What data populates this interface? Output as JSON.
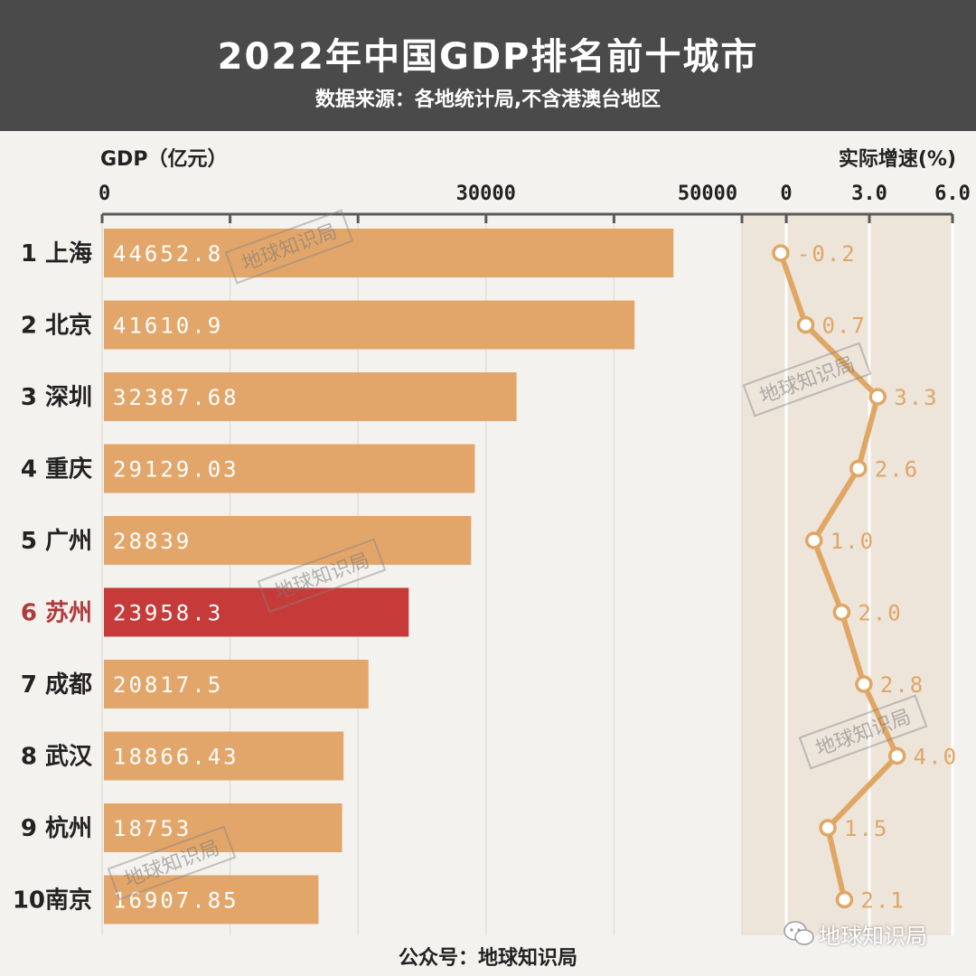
{
  "header": {
    "title": "2022年中国GDP排名前十城市",
    "subtitle": "数据来源：各地统计局,不含港澳台地区"
  },
  "footer": {
    "source": "公众号：地球知识局",
    "brand": "地球知识局",
    "brand_icon": "wechat-icon"
  },
  "watermark_text": "地球知识局",
  "colors": {
    "bar": "#e3a66a",
    "highlight_bar": "#c73a3a",
    "highlight_label": "#b03a3a",
    "line": "#e0a664",
    "growth_panel": "#ede4da",
    "grid": "#5a5a5a",
    "header_bg": "#4a4a4a"
  },
  "chart_data": [
    {
      "type": "bar",
      "orientation": "horizontal",
      "axis_label": "GDP（亿元）",
      "tick_labels": [
        "0",
        "30000",
        "50000"
      ],
      "tick_values": [
        0,
        30000,
        50000
      ],
      "gridline_values": [
        0,
        10000,
        20000,
        30000,
        40000,
        50000
      ],
      "xlim": [
        0,
        50000
      ],
      "grid": true,
      "categories": [
        "1 上海",
        "2 北京",
        "3 深圳",
        "4 重庆",
        "5 广州",
        "6 苏州",
        "7 成都",
        "8 武汉",
        "9 杭州",
        "10南京"
      ],
      "values": [
        44652.8,
        41610.9,
        32387.68,
        29129.03,
        28839,
        23958.3,
        20817.5,
        18866.43,
        18753,
        16907.85
      ],
      "value_labels": [
        "44652.8",
        "41610.9",
        "32387.68",
        "29129.03",
        "28839",
        "23958.3",
        "20817.5",
        "18866.43",
        "18753",
        "16907.85"
      ],
      "highlight_index": 5
    },
    {
      "type": "line",
      "orientation": "vertical",
      "axis_label": "实际增速(%)",
      "tick_labels": [
        "0",
        "3.0",
        "6.0"
      ],
      "tick_values": [
        0,
        3,
        6
      ],
      "xlim": [
        -1.6,
        6
      ],
      "values": [
        -0.2,
        0.7,
        3.3,
        2.6,
        1.0,
        2.0,
        2.8,
        4.0,
        1.5,
        2.1
      ],
      "value_labels": [
        "-0.2",
        "0.7",
        "3.3",
        "2.6",
        "1.0",
        "2.0",
        "2.8",
        "4.0",
        "1.5",
        "2.1"
      ]
    }
  ]
}
